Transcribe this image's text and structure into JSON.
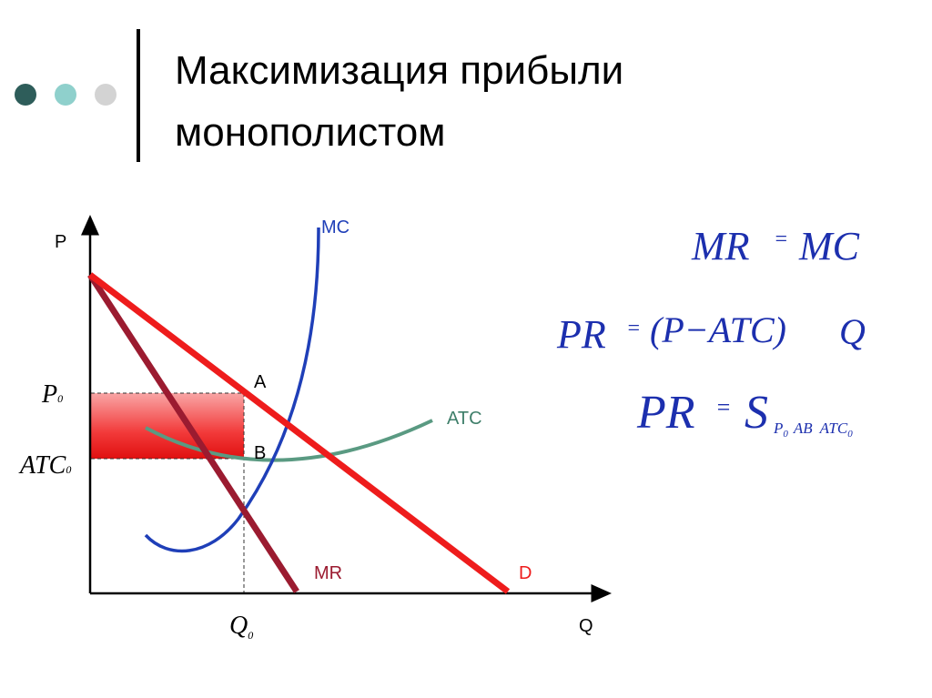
{
  "header": {
    "title_lines": [
      "Максимизация прибыли",
      "монополистом"
    ]
  },
  "graph": {
    "y_axis_label": "P",
    "x_axis_label": "Q",
    "curves": {
      "mc": "MC",
      "atc": "ATC",
      "mr": "MR",
      "d": "D"
    },
    "points": {
      "a": "A",
      "b": "B"
    },
    "markers": {
      "p0": {
        "base": "P",
        "sub": "0"
      },
      "atc0": {
        "base": "ATC",
        "sub": "0"
      },
      "q0": {
        "base": "Q",
        "sub": "0"
      }
    }
  },
  "formulas": [
    {
      "left": "MR",
      "eq": "=",
      "right": "MC"
    },
    {
      "left": "PR",
      "eq": "=",
      "right": "(P−ATC)",
      "tail": "Q"
    },
    {
      "left": "PR",
      "eq": "=",
      "right": "S",
      "sub1": "P",
      "sub1_index": "0",
      "sub2": "AB",
      "sub3": "ATC",
      "sub3_index": "0"
    }
  ]
}
